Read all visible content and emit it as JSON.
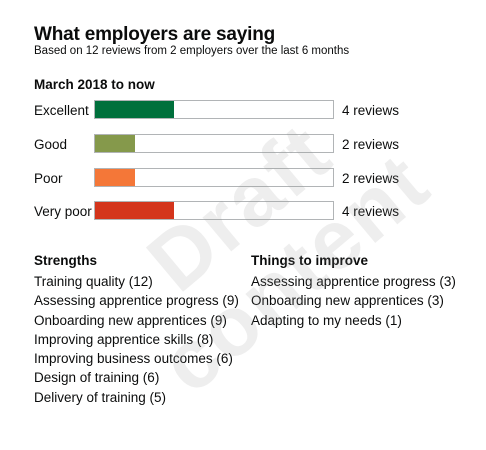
{
  "header": {
    "title": "What employers are saying",
    "subtitle": "Based on 12 reviews from 2 employers over the last 6 months"
  },
  "period": "March 2018 to now",
  "ratings": [
    {
      "label": "Excellent",
      "count_label": "4 reviews",
      "fraction": 0.33,
      "color": "#00703c"
    },
    {
      "label": "Good",
      "count_label": "2 reviews",
      "fraction": 0.17,
      "color": "#85994b"
    },
    {
      "label": "Poor",
      "count_label": "2 reviews",
      "fraction": 0.17,
      "color": "#f47738"
    },
    {
      "label": "Very poor",
      "count_label": "4 reviews",
      "fraction": 0.33,
      "color": "#d4351c"
    }
  ],
  "strengths": {
    "heading": "Strengths",
    "items": [
      "Training quality (12)",
      "Assessing apprentice progress (9)",
      "Onboarding new apprentices (9)",
      "Improving apprentice skills (8)",
      "Improving business outcomes (6)",
      "Design of training (6)",
      "Delivery of training (5)"
    ]
  },
  "improve": {
    "heading": "Things to improve",
    "items": [
      "Assessing apprentice progress (3)",
      "Onboarding new apprentices (3)",
      "Adapting to my needs (1)"
    ]
  },
  "watermark": "Draft content"
}
